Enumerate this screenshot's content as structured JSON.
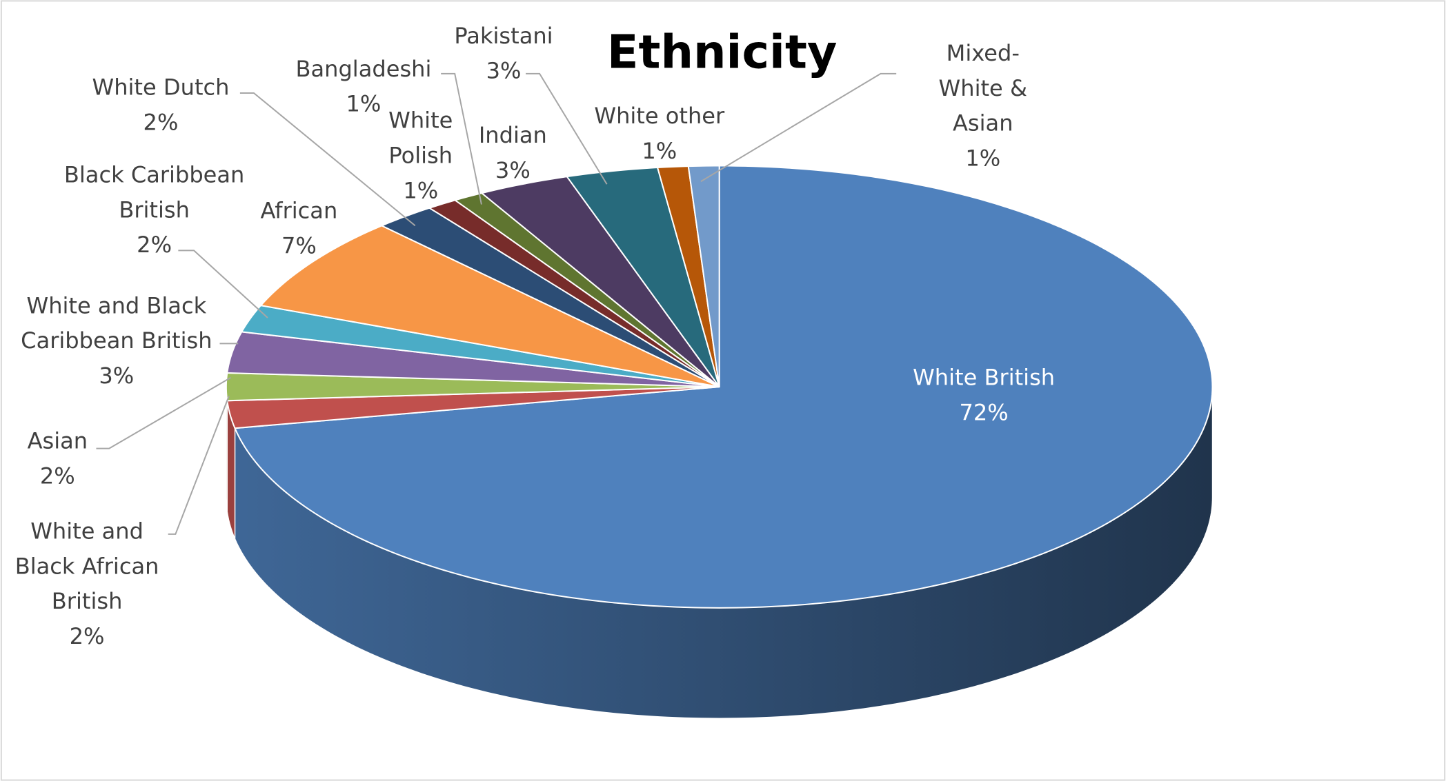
{
  "chart_data": {
    "type": "pie3d",
    "title": "Ethnicity",
    "categories": [
      "White British",
      "White and Black African British",
      "Asian",
      "White and Black Caribbean British",
      "Black Caribbean British",
      "African",
      "White Dutch",
      "Bangladeshi",
      "White Polish",
      "Indian",
      "Pakistani",
      "White other",
      "Mixed-White & Asian"
    ],
    "values": [
      72,
      2,
      2,
      3,
      2,
      7,
      2,
      1,
      1,
      3,
      3,
      1,
      1
    ],
    "value_labels": [
      "72%",
      "2%",
      "2%",
      "3%",
      "2%",
      "7%",
      "2%",
      "1%",
      "1%",
      "3%",
      "3%",
      "1%",
      "1%"
    ],
    "colors": [
      "#4f81bd",
      "#c0504d",
      "#9bbb59",
      "#8064a2",
      "#4bacc6",
      "#f79646",
      "#2c4d75",
      "#772c2a",
      "#5f7530",
      "#4d3b62",
      "#276a7c",
      "#b65708",
      "#729aca"
    ]
  }
}
